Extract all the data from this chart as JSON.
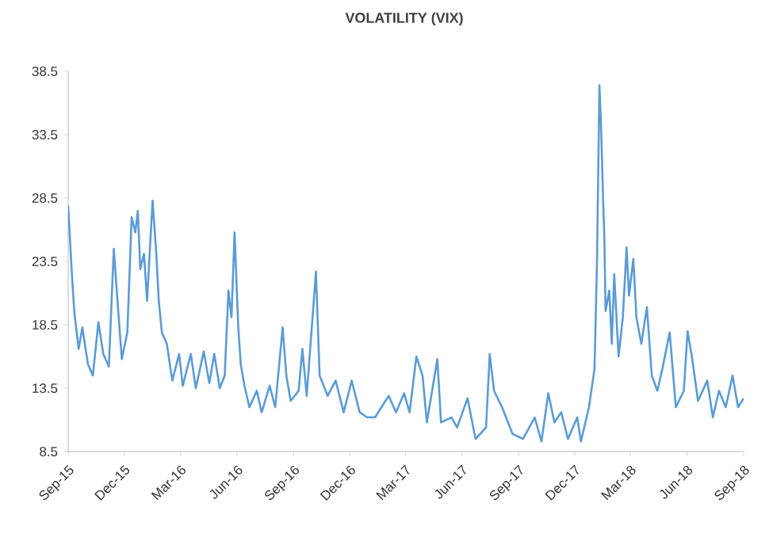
{
  "chart_data": {
    "type": "line",
    "title": "VOLATILITY (VIX)",
    "x": [
      "2015-09-01",
      "2015-09-07",
      "2015-09-11",
      "2015-09-18",
      "2015-09-24",
      "2015-10-03",
      "2015-10-11",
      "2015-10-20",
      "2015-10-28",
      "2015-11-06",
      "2015-11-14",
      "2015-11-20",
      "2015-11-27",
      "2015-12-06",
      "2015-12-13",
      "2015-12-19",
      "2015-12-23",
      "2015-12-27",
      "2016-01-02",
      "2016-01-07",
      "2016-01-16",
      "2016-01-22",
      "2016-01-26",
      "2016-01-31",
      "2016-02-08",
      "2016-02-17",
      "2016-02-28",
      "2016-03-05",
      "2016-03-18",
      "2016-03-26",
      "2016-04-08",
      "2016-04-17",
      "2016-04-25",
      "2016-05-04",
      "2016-05-12",
      "2016-05-18",
      "2016-05-23",
      "2016-05-28",
      "2016-06-03",
      "2016-06-07",
      "2016-06-13",
      "2016-06-21",
      "2016-07-03",
      "2016-07-11",
      "2016-07-24",
      "2016-08-02",
      "2016-08-14",
      "2016-08-20",
      "2016-08-27",
      "2016-09-09",
      "2016-09-15",
      "2016-09-22",
      "2016-10-07",
      "2016-10-13",
      "2016-10-26",
      "2016-11-08",
      "2016-11-21",
      "2016-12-04",
      "2016-12-17",
      "2016-12-29",
      "2017-01-11",
      "2017-02-02",
      "2017-02-14",
      "2017-02-27",
      "2017-03-08",
      "2017-03-19",
      "2017-03-29",
      "2017-04-05",
      "2017-04-22",
      "2017-04-28",
      "2017-05-15",
      "2017-05-24",
      "2017-06-10",
      "2017-06-23",
      "2017-07-10",
      "2017-07-16",
      "2017-07-23",
      "2017-08-05",
      "2017-08-22",
      "2017-09-08",
      "2017-09-27",
      "2017-10-08",
      "2017-10-19",
      "2017-10-29",
      "2017-11-09",
      "2017-11-20",
      "2017-12-05",
      "2017-12-11",
      "2017-12-24",
      "2018-01-02",
      "2018-01-06",
      "2018-01-10",
      "2018-01-13",
      "2018-01-16",
      "2018-01-18",
      "2018-01-20",
      "2018-01-26",
      "2018-01-30",
      "2018-02-03",
      "2018-02-10",
      "2018-02-17",
      "2018-02-23",
      "2018-02-27",
      "2018-03-06",
      "2018-03-11",
      "2018-03-19",
      "2018-03-28",
      "2018-04-05",
      "2018-04-14",
      "2018-04-22",
      "2018-05-04",
      "2018-05-14",
      "2018-05-27",
      "2018-06-02",
      "2018-06-09",
      "2018-06-19",
      "2018-07-04",
      "2018-07-13",
      "2018-07-23",
      "2018-08-03",
      "2018-08-14",
      "2018-08-23",
      "2018-09-01"
    ],
    "series": [
      {
        "color": "#5b9bd5",
        "values": [
          27.9,
          22.5,
          19.5,
          16.6,
          18.3,
          15.4,
          14.5,
          18.7,
          16.2,
          15.2,
          24.5,
          20.4,
          15.8,
          17.9,
          27.0,
          25.8,
          27.5,
          22.9,
          24.1,
          20.4,
          28.3,
          24.1,
          20.4,
          17.9,
          17.0,
          14.1,
          16.2,
          13.7,
          16.2,
          13.5,
          16.4,
          13.9,
          16.2,
          13.5,
          14.5,
          21.2,
          19.1,
          25.8,
          18.3,
          15.4,
          13.7,
          12.0,
          13.3,
          11.6,
          13.7,
          12.0,
          18.3,
          14.5,
          12.5,
          13.3,
          16.6,
          12.9,
          22.7,
          14.5,
          12.9,
          14.1,
          11.6,
          14.1,
          11.6,
          11.2,
          11.2,
          12.9,
          11.6,
          13.1,
          11.6,
          16.0,
          14.5,
          10.8,
          15.8,
          10.8,
          11.2,
          10.4,
          12.7,
          9.5,
          10.4,
          16.2,
          13.3,
          12.0,
          9.9,
          9.5,
          11.2,
          9.3,
          13.1,
          10.8,
          11.6,
          9.5,
          11.2,
          9.3,
          12.0,
          15.0,
          23.3,
          37.4,
          33.7,
          28.3,
          25.4,
          19.6,
          21.2,
          17.0,
          22.5,
          16.0,
          19.1,
          24.6,
          20.8,
          23.7,
          19.1,
          17.0,
          19.9,
          14.5,
          13.3,
          15.0,
          17.9,
          12.0,
          13.3,
          18.0,
          16.0,
          12.5,
          14.1,
          11.2,
          13.3,
          12.0,
          14.5,
          12.0,
          12.7
        ]
      }
    ],
    "xlim": [
      "2015-09-01",
      "2018-09-01"
    ],
    "xticks": [
      {
        "value": "2015-09-01",
        "label": "Sep-15"
      },
      {
        "value": "2015-12-01",
        "label": "Dec-15"
      },
      {
        "value": "2016-03-01",
        "label": "Mar-16"
      },
      {
        "value": "2016-06-01",
        "label": "Jun-16"
      },
      {
        "value": "2016-09-01",
        "label": "Sep-16"
      },
      {
        "value": "2016-12-01",
        "label": "Dec-16"
      },
      {
        "value": "2017-03-01",
        "label": "Mar-17"
      },
      {
        "value": "2017-06-01",
        "label": "Jun-17"
      },
      {
        "value": "2017-09-01",
        "label": "Sep-17"
      },
      {
        "value": "2017-12-01",
        "label": "Dec-17"
      },
      {
        "value": "2018-03-01",
        "label": "Mar-18"
      },
      {
        "value": "2018-06-01",
        "label": "Jun-18"
      },
      {
        "value": "2018-09-01",
        "label": "Sep-18"
      }
    ],
    "ylim": [
      8.5,
      38.5
    ],
    "yticks": [
      8.5,
      13.5,
      18.5,
      23.5,
      28.5,
      33.5,
      38.5
    ],
    "grid": false,
    "legend": false,
    "marker": "none",
    "line_style": "solid"
  }
}
